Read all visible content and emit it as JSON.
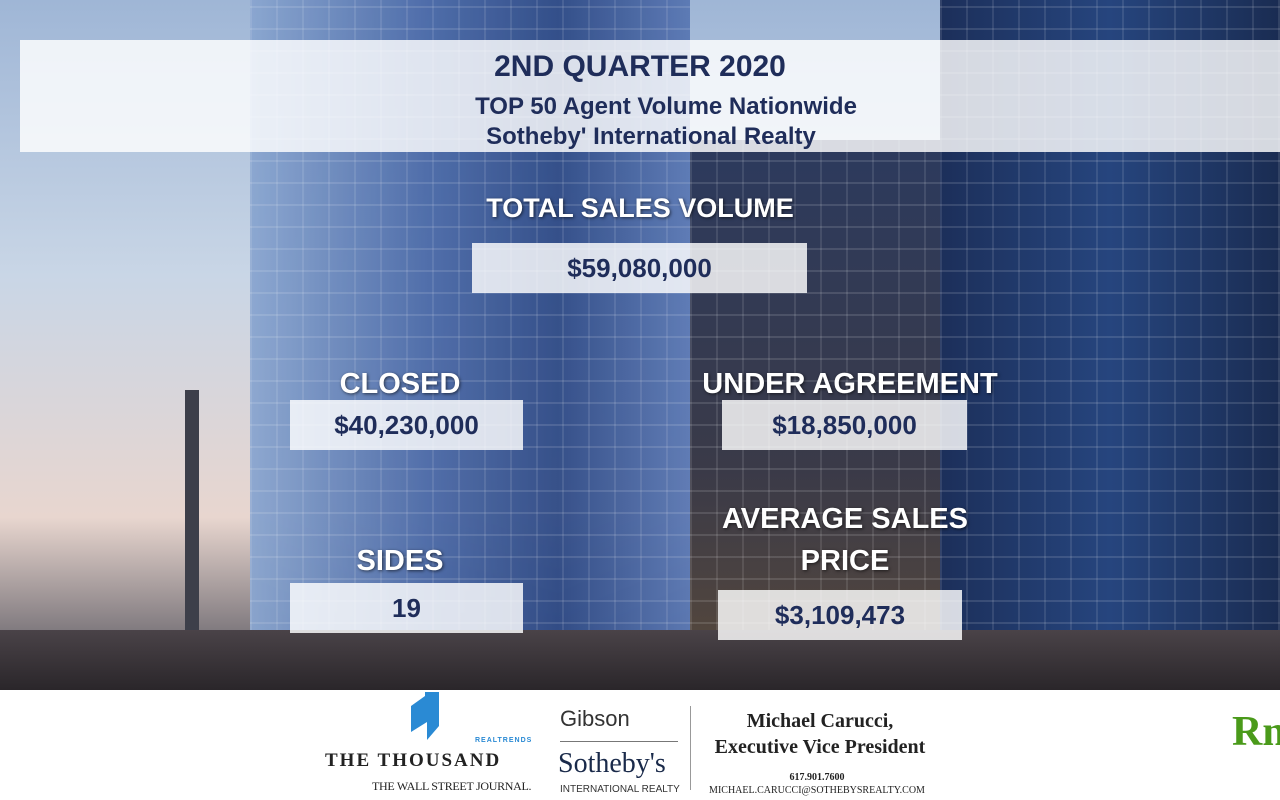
{
  "header": {
    "quarter": "2ND QUARTER  2020",
    "line1": "TOP 50 Agent Volume Nationwide",
    "line2": "Sotheby' International Realty"
  },
  "total": {
    "label": "TOTAL SALES VOLUME",
    "value": "$59,080,000"
  },
  "closed": {
    "label": "CLOSED",
    "value": "$40,230,000"
  },
  "under_agreement": {
    "label": "UNDER AGREEMENT",
    "value": "$18,850,000"
  },
  "sides": {
    "label": "SIDES",
    "value": "19"
  },
  "average": {
    "label1": "AVERAGE SALES",
    "label2": "PRICE",
    "value": "$3,109,473"
  },
  "footer": {
    "realtrends": "REALTRENDS",
    "thousand": "THE THOUSAND",
    "wsj": "THE WALL STREET JOURNAL.",
    "gibson": "Gibson",
    "sothebys": "Sotheby's",
    "intl": "INTERNATIONAL REALTY",
    "agent_name": "Michael Carucci,",
    "agent_title": "Executive Vice President",
    "phone": "617.901.7600",
    "email": "MICHAEL.CARUCCI@SOTHEBYSREALTY.COM",
    "partial_logo": "Rn"
  },
  "colors": {
    "navy": "#1f2d5a",
    "logo_blue": "#2a8ad4",
    "green": "#4a9a1a"
  }
}
